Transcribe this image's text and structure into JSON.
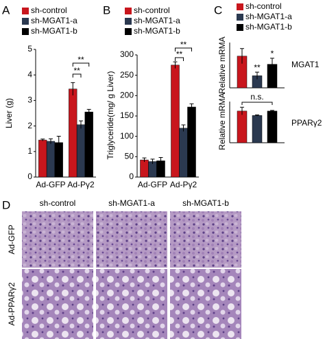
{
  "chart_data": [
    {
      "type": "bar",
      "panel": "A",
      "y_label": "Liver (g)",
      "categories": [
        "Ad-GFP",
        "Ad-Pγ2"
      ],
      "series": [
        {
          "name": "sh-control",
          "color": "#c8161d",
          "values": [
            1.45,
            3.45
          ],
          "errors": [
            0.04,
            0.25
          ]
        },
        {
          "name": "sh-MGAT1-a",
          "color": "#2b3950",
          "values": [
            1.4,
            2.05
          ],
          "errors": [
            0.1,
            0.15
          ]
        },
        {
          "name": "sh-MGAT1-b",
          "color": "#000000",
          "values": [
            1.35,
            2.55
          ],
          "errors": [
            0.25,
            0.1
          ]
        }
      ],
      "ylim": [
        0,
        5
      ],
      "yticks": [
        0,
        1,
        2,
        3,
        4,
        5
      ],
      "annotations": [
        "**",
        "**"
      ]
    },
    {
      "type": "bar",
      "panel": "B",
      "y_label": "Triglyceride(mg/ g Liver)",
      "categories": [
        "Ad-GFP",
        "Ad-Pγ2"
      ],
      "series": [
        {
          "name": "sh-control",
          "color": "#c8161d",
          "values": [
            42,
            275
          ],
          "errors": [
            5,
            8
          ]
        },
        {
          "name": "sh-MGAT1-a",
          "color": "#2b3950",
          "values": [
            38,
            120
          ],
          "errors": [
            6,
            8
          ]
        },
        {
          "name": "sh-MGAT1-b",
          "color": "#000000",
          "values": [
            40,
            172
          ],
          "errors": [
            8,
            8
          ]
        }
      ],
      "ylim": [
        0,
        300
      ],
      "yticks": [
        0,
        50,
        100,
        150,
        200,
        250,
        300
      ],
      "annotations": [
        "**",
        "**"
      ]
    },
    {
      "type": "bar",
      "panel": "C",
      "y_label": "Relative mRMA",
      "gene": "MGAT1",
      "series": [
        {
          "name": "sh-control",
          "color": "#c8161d",
          "values": [
            1.05
          ],
          "errors": [
            0.25
          ]
        },
        {
          "name": "sh-MGAT1-a",
          "color": "#2b3950",
          "values": [
            0.4
          ],
          "errors": [
            0.12
          ]
        },
        {
          "name": "sh-MGAT1-b",
          "color": "#000000",
          "values": [
            0.78
          ],
          "errors": [
            0.2
          ]
        }
      ],
      "ylim": [
        0,
        1.5
      ],
      "annotations": [
        "**",
        "*"
      ]
    },
    {
      "type": "bar",
      "y_label": "Relative mRMA",
      "gene": "PPARγ2",
      "series": [
        {
          "color": "#c8161d",
          "values": [
            1.0
          ],
          "errors": [
            0.12
          ]
        },
        {
          "color": "#2b3950",
          "values": [
            0.86
          ],
          "errors": [
            0.02
          ]
        },
        {
          "color": "#000000",
          "values": [
            1.0
          ],
          "errors": [
            0.02
          ]
        }
      ],
      "ylim": [
        0,
        1.3
      ],
      "annotations": [
        "n.s."
      ]
    }
  ],
  "histology": {
    "panel": "D",
    "columns": [
      "sh-control",
      "sh-MGAT1-a",
      "sh-MGAT1-b"
    ],
    "rows": [
      "Ad-GFP",
      "Ad-PPARγ2"
    ]
  }
}
